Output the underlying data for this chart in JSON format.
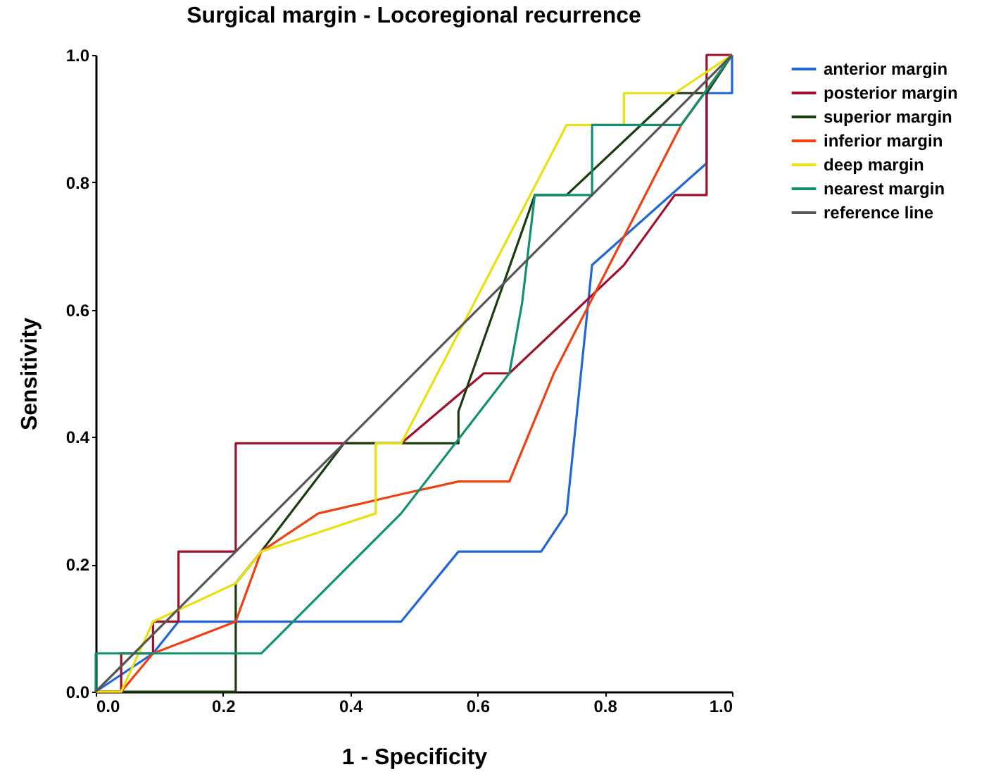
{
  "chart_data": {
    "type": "line",
    "title": "Surgical margin - Locoregional recurrence",
    "xlabel": "1 - Specificity",
    "ylabel": "Sensitivity",
    "xlim": [
      0,
      1
    ],
    "ylim": [
      0,
      1
    ],
    "xticks": [
      {
        "value": 0,
        "label": "0.0"
      },
      {
        "value": 0.2,
        "label": "0.2"
      },
      {
        "value": 0.4,
        "label": "0.4"
      },
      {
        "value": 0.6,
        "label": "0.6"
      },
      {
        "value": 0.8,
        "label": "0.8"
      },
      {
        "value": 1,
        "label": "1.0"
      }
    ],
    "yticks": [
      {
        "value": 0,
        "label": "0.0"
      },
      {
        "value": 0.2,
        "label": "0.2"
      },
      {
        "value": 0.4,
        "label": "0.4"
      },
      {
        "value": 0.6,
        "label": "0.6"
      },
      {
        "value": 0.8,
        "label": "0.8"
      },
      {
        "value": 1,
        "label": "1.0"
      }
    ],
    "grid": false,
    "legend": "right",
    "marker": "none",
    "line_style": "solid",
    "series": [
      {
        "name": "anterior margin",
        "color": "#2166d8",
        "x": [
          0,
          0.09,
          0.13,
          0.48,
          0.57,
          0.7,
          0.74,
          0.78,
          0.96,
          0.96,
          1,
          1
        ],
        "values": [
          0,
          0.06,
          0.11,
          0.11,
          0.22,
          0.22,
          0.28,
          0.67,
          0.83,
          0.94,
          0.94,
          1
        ]
      },
      {
        "name": "posterior margin",
        "color": "#a0102a",
        "x": [
          0,
          0.04,
          0.04,
          0.09,
          0.09,
          0.13,
          0.13,
          0.22,
          0.22,
          0.48,
          0.61,
          0.65,
          0.83,
          0.91,
          0.96,
          0.96,
          1
        ],
        "values": [
          0,
          0,
          0.06,
          0.06,
          0.11,
          0.11,
          0.22,
          0.22,
          0.39,
          0.39,
          0.5,
          0.5,
          0.67,
          0.78,
          0.78,
          1,
          1
        ]
      },
      {
        "name": "superior margin",
        "color": "#1a3d10",
        "x": [
          0,
          0.22,
          0.22,
          0.26,
          0.39,
          0.57,
          0.57,
          0.69,
          0.74,
          0.91,
          0.96,
          1
        ],
        "values": [
          0,
          0,
          0.17,
          0.22,
          0.39,
          0.39,
          0.44,
          0.78,
          0.78,
          0.94,
          0.94,
          1
        ]
      },
      {
        "name": "inferior margin",
        "color": "#ee4010",
        "x": [
          0,
          0.04,
          0.09,
          0.22,
          0.26,
          0.35,
          0.48,
          0.57,
          0.65,
          0.72,
          0.92,
          1
        ],
        "values": [
          0,
          0,
          0.06,
          0.11,
          0.22,
          0.28,
          0.31,
          0.33,
          0.33,
          0.5,
          0.89,
          1
        ]
      },
      {
        "name": "deep margin",
        "color": "#e8e010",
        "x": [
          0,
          0.04,
          0.09,
          0.22,
          0.26,
          0.44,
          0.44,
          0.48,
          0.74,
          0.83,
          0.83,
          0.91,
          1
        ],
        "values": [
          0,
          0,
          0.11,
          0.17,
          0.22,
          0.28,
          0.39,
          0.39,
          0.89,
          0.89,
          0.94,
          0.94,
          1
        ]
      },
      {
        "name": "nearest margin",
        "color": "#109070",
        "x": [
          0,
          0,
          0.26,
          0.48,
          0.65,
          0.67,
          0.69,
          0.78,
          0.78,
          0.92,
          1
        ],
        "values": [
          0,
          0.06,
          0.06,
          0.28,
          0.5,
          0.61,
          0.78,
          0.78,
          0.89,
          0.89,
          1
        ]
      },
      {
        "name": "reference line",
        "color": "#555555",
        "x": [
          0,
          1
        ],
        "values": [
          0,
          1
        ]
      }
    ]
  }
}
